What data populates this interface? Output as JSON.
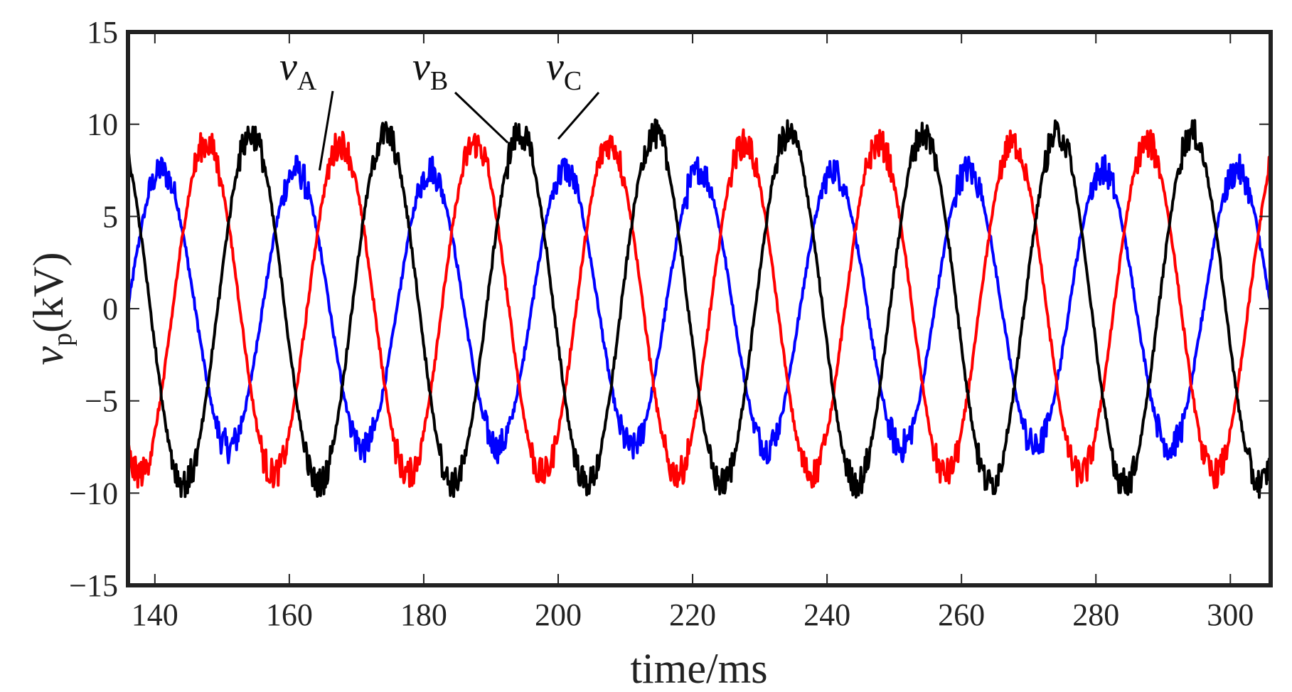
{
  "chart_data": {
    "type": "line",
    "title": "",
    "xlabel": "time/ms",
    "ylabel": {
      "var": "v",
      "sub": "p",
      "unit": "(kV)"
    },
    "xlim": [
      136,
      306
    ],
    "ylim": [
      -15,
      15
    ],
    "x_ticks": [
      140,
      160,
      180,
      200,
      220,
      240,
      260,
      280,
      300
    ],
    "y_ticks": [
      15,
      10,
      5,
      0,
      -5,
      -10,
      -15
    ],
    "y_tick_labels": [
      "15",
      "10",
      "5",
      "0",
      "−5",
      "−10",
      "−15"
    ],
    "grid": false,
    "frequency_hz": 50,
    "series": [
      {
        "name": "A",
        "label_var": "v",
        "label_sub": "A",
        "color": "#0000ff",
        "amplitude_kv": 7.5,
        "phase_deg": 0,
        "t0_ms": 136,
        "peak_at_ms": 141,
        "noise_at_peaks": true
      },
      {
        "name": "B",
        "label_var": "v",
        "label_sub": "B",
        "color": "#ff0000",
        "amplitude_kv": 9.0,
        "phase_deg": -120,
        "t0_ms": 136,
        "peak_at_ms": 152,
        "noise_at_peaks": true
      },
      {
        "name": "C",
        "label_var": "v",
        "label_sub": "C",
        "color": "#000000",
        "amplitude_kv": 9.5,
        "phase_deg": 120,
        "t0_ms": 136,
        "peak_at_ms": 158,
        "noise_at_peaks": true
      }
    ],
    "annotations": [
      {
        "series": "A",
        "text_var": "v",
        "text_sub": "A",
        "points_to": {
          "x": 164.5,
          "y": 7.5
        }
      },
      {
        "series": "B",
        "text_var": "v",
        "text_sub": "B",
        "points_to": {
          "x": 192.5,
          "y": 9.0
        }
      },
      {
        "series": "C",
        "text_var": "v",
        "text_sub": "C",
        "points_to": {
          "x": 200,
          "y": 9.2
        }
      }
    ]
  }
}
